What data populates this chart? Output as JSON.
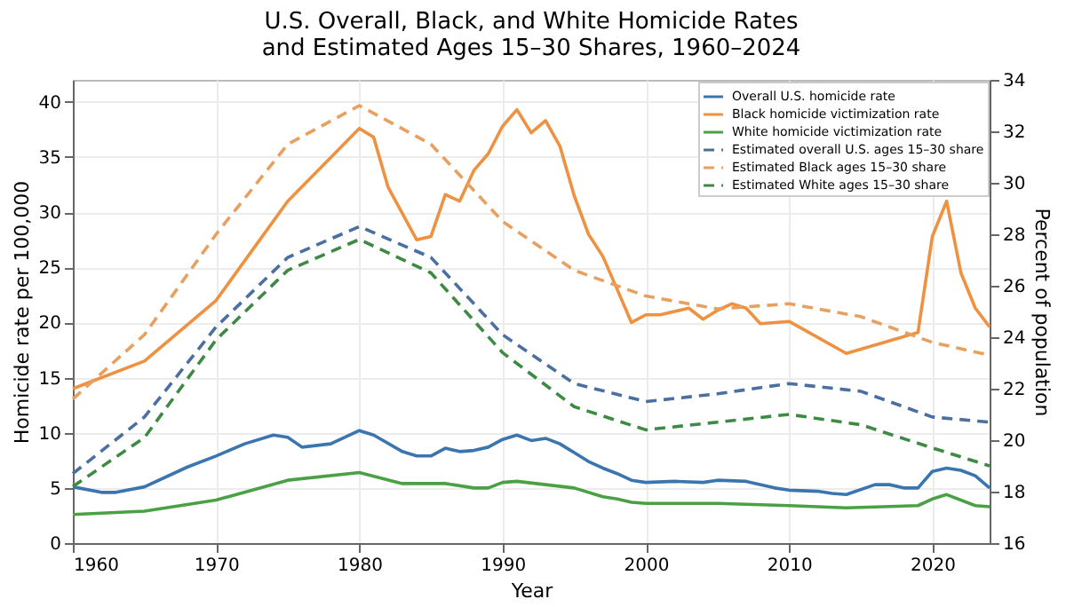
{
  "chart_data": {
    "type": "line",
    "title": "U.S. Overall, Black, and White Homicide Rates\nand Estimated Ages 15–30 Shares, 1960–2024",
    "xlabel": "Year",
    "ylabel": "Homicide rate per 100,000",
    "y2label": "Percent of population",
    "xlim": [
      1960,
      2024
    ],
    "xticks": [
      1960,
      1970,
      1980,
      1990,
      2000,
      2010,
      2020
    ],
    "ylim": [
      0,
      42
    ],
    "yticks": [
      0,
      5,
      10,
      15,
      20,
      25,
      30,
      35,
      40
    ],
    "y2lim": [
      16,
      34
    ],
    "y2ticks": [
      16,
      18,
      20,
      22,
      24,
      26,
      28,
      30,
      32,
      34
    ],
    "grid": true,
    "legend": "top right",
    "series": [
      {
        "name": "Overall U.S. homicide rate",
        "color": "#3a75b0",
        "line_style": "solid",
        "x": [
          1960,
          1962,
          1963,
          1965,
          1968,
          1970,
          1972,
          1974,
          1975,
          1976,
          1978,
          1980,
          1981,
          1983,
          1984,
          1985,
          1986,
          1987,
          1988,
          1989,
          1990,
          1991,
          1992,
          1993,
          1994,
          1995,
          1996,
          1997,
          1998,
          1999,
          2000,
          2002,
          2004,
          2005,
          2007,
          2009,
          2010,
          2012,
          2013,
          2014,
          2016,
          2017,
          2018,
          2019,
          2020,
          2021,
          2022,
          2023,
          2024
        ],
        "values": [
          5.1,
          4.6,
          4.6,
          5.1,
          6.9,
          7.9,
          9.0,
          9.8,
          9.6,
          8.7,
          9.0,
          10.2,
          9.8,
          8.3,
          7.9,
          7.9,
          8.6,
          8.3,
          8.4,
          8.7,
          9.4,
          9.8,
          9.3,
          9.5,
          9.0,
          8.2,
          7.4,
          6.8,
          6.3,
          5.7,
          5.5,
          5.6,
          5.5,
          5.7,
          5.6,
          5.0,
          4.8,
          4.7,
          4.5,
          4.4,
          5.3,
          5.3,
          5.0,
          5.0,
          6.5,
          6.8,
          6.6,
          6.1,
          5.0
        ]
      },
      {
        "name": "Black homicide victimization rate",
        "color": "#ee9140",
        "line_style": "solid",
        "x": [
          1960,
          1965,
          1970,
          1975,
          1980,
          1981,
          1982,
          1984,
          1985,
          1986,
          1987,
          1988,
          1989,
          1990,
          1991,
          1992,
          1993,
          1994,
          1995,
          1996,
          1997,
          1998,
          1999,
          2000,
          2001,
          2003,
          2004,
          2005,
          2006,
          2007,
          2008,
          2010,
          2014,
          2019,
          2020,
          2021,
          2022,
          2023,
          2024
        ],
        "values": [
          14.0,
          16.5,
          22.0,
          31.0,
          37.6,
          36.8,
          32.3,
          27.5,
          27.8,
          31.6,
          31.0,
          33.8,
          35.3,
          37.8,
          39.3,
          37.2,
          38.3,
          36.0,
          31.5,
          28.0,
          26.0,
          23.0,
          20.0,
          20.7,
          20.7,
          21.3,
          20.3,
          21.1,
          21.7,
          21.3,
          19.9,
          20.1,
          17.2,
          19.1,
          27.8,
          31.0,
          24.5,
          21.3,
          19.6
        ]
      },
      {
        "name": "White homicide victimization rate",
        "color": "#4aa144",
        "line_style": "solid",
        "x": [
          1960,
          1965,
          1970,
          1975,
          1980,
          1983,
          1986,
          1988,
          1989,
          1990,
          1991,
          1993,
          1995,
          1997,
          1998,
          1999,
          2000,
          2005,
          2010,
          2014,
          2019,
          2020,
          2021,
          2023,
          2024
        ],
        "values": [
          2.6,
          2.9,
          3.9,
          5.7,
          6.4,
          5.4,
          5.4,
          5.0,
          5.0,
          5.5,
          5.6,
          5.3,
          5.0,
          4.2,
          4.0,
          3.7,
          3.6,
          3.6,
          3.4,
          3.2,
          3.4,
          4.0,
          4.4,
          3.4,
          3.3
        ]
      },
      {
        "name": "Estimated overall U.S. ages 15–30 share",
        "color": "#4a6fa0",
        "line_style": "dashed",
        "axis": "y2",
        "x": [
          1960,
          1965,
          1970,
          1975,
          1980,
          1985,
          1990,
          1995,
          2000,
          2005,
          2010,
          2015,
          2020,
          2024
        ],
        "values": [
          18.7,
          20.9,
          24.4,
          27.1,
          28.3,
          27.1,
          24.1,
          22.2,
          21.5,
          21.8,
          22.2,
          21.9,
          20.9,
          20.7
        ]
      },
      {
        "name": "Estimated Black ages 15–30 share",
        "color": "#e8a060",
        "line_style": "dashed",
        "axis": "y2",
        "x": [
          1960,
          1965,
          1970,
          1975,
          1980,
          1985,
          1990,
          1995,
          2000,
          2005,
          2010,
          2015,
          2020,
          2024
        ],
        "values": [
          21.6,
          24.1,
          28.0,
          31.5,
          33.0,
          31.5,
          28.5,
          26.6,
          25.6,
          25.1,
          25.3,
          24.8,
          23.8,
          23.3
        ]
      },
      {
        "name": "Estimated White ages 15–30 share",
        "color": "#3e8a44",
        "line_style": "dashed",
        "axis": "y2",
        "x": [
          1960,
          1965,
          1970,
          1975,
          1980,
          1985,
          1990,
          1995,
          2000,
          2005,
          2010,
          2015,
          2020,
          2024
        ],
        "values": [
          18.2,
          20.1,
          23.9,
          26.6,
          27.8,
          26.5,
          23.4,
          21.3,
          20.4,
          20.7,
          21.0,
          20.6,
          19.7,
          19.0
        ]
      }
    ]
  }
}
